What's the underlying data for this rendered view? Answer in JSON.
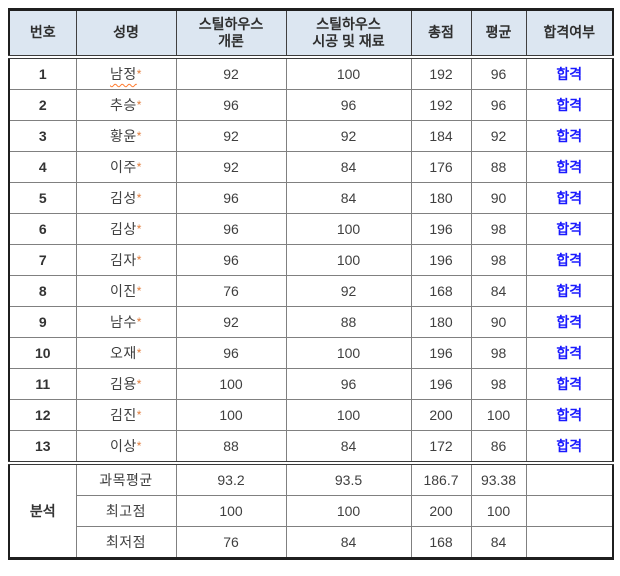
{
  "page": {
    "background": "#ffffff"
  },
  "table": {
    "headers": [
      "번호",
      "성명",
      "스틸하우스\n개론",
      "스틸하우스\n시공 및 재료",
      "총점",
      "평균",
      "합격여부"
    ],
    "rows": [
      {
        "no": "1",
        "name": "남정*",
        "score1": "92",
        "score2": "100",
        "total": "192",
        "avg": "96",
        "result": "합격",
        "misspelled": true
      },
      {
        "no": "2",
        "name": "추승*",
        "score1": "96",
        "score2": "96",
        "total": "192",
        "avg": "96",
        "result": "합격"
      },
      {
        "no": "3",
        "name": "황윤*",
        "score1": "92",
        "score2": "92",
        "total": "184",
        "avg": "92",
        "result": "합격"
      },
      {
        "no": "4",
        "name": "이주*",
        "score1": "92",
        "score2": "84",
        "total": "176",
        "avg": "88",
        "result": "합격"
      },
      {
        "no": "5",
        "name": "김성*",
        "score1": "96",
        "score2": "84",
        "total": "180",
        "avg": "90",
        "result": "합격"
      },
      {
        "no": "6",
        "name": "김상*",
        "score1": "96",
        "score2": "100",
        "total": "196",
        "avg": "98",
        "result": "합격"
      },
      {
        "no": "7",
        "name": "김자*",
        "score1": "96",
        "score2": "100",
        "total": "196",
        "avg": "98",
        "result": "합격"
      },
      {
        "no": "8",
        "name": "이진*",
        "score1": "76",
        "score2": "92",
        "total": "168",
        "avg": "84",
        "result": "합격"
      },
      {
        "no": "9",
        "name": "남수*",
        "score1": "92",
        "score2": "88",
        "total": "180",
        "avg": "90",
        "result": "합격"
      },
      {
        "no": "10",
        "name": "오재*",
        "score1": "96",
        "score2": "100",
        "total": "196",
        "avg": "98",
        "result": "합격"
      },
      {
        "no": "11",
        "name": "김용*",
        "score1": "100",
        "score2": "96",
        "total": "196",
        "avg": "98",
        "result": "합격"
      },
      {
        "no": "12",
        "name": "김진*",
        "score1": "100",
        "score2": "100",
        "total": "200",
        "avg": "100",
        "result": "합격"
      },
      {
        "no": "13",
        "name": "이상*",
        "score1": "88",
        "score2": "84",
        "total": "172",
        "avg": "86",
        "result": "합격"
      }
    ],
    "analysis": {
      "label": "분석",
      "rows": [
        {
          "label": "과목평균",
          "score1": "93.2",
          "score2": "93.5",
          "total": "186.7",
          "avg": "93.38",
          "result": ""
        },
        {
          "label": "최고점",
          "score1": "100",
          "score2": "100",
          "total": "200",
          "avg": "100",
          "result": ""
        },
        {
          "label": "최저점",
          "score1": "76",
          "score2": "84",
          "total": "168",
          "avg": "84",
          "result": ""
        }
      ]
    },
    "colors": {
      "header_bg": "#dce6f1",
      "pass_text": "#1a1aff",
      "grid_line": "#808080",
      "outer_border": "#1f1f1f",
      "body_text": "#3f3f3f",
      "mask_asterisk": "#e07b39"
    }
  }
}
